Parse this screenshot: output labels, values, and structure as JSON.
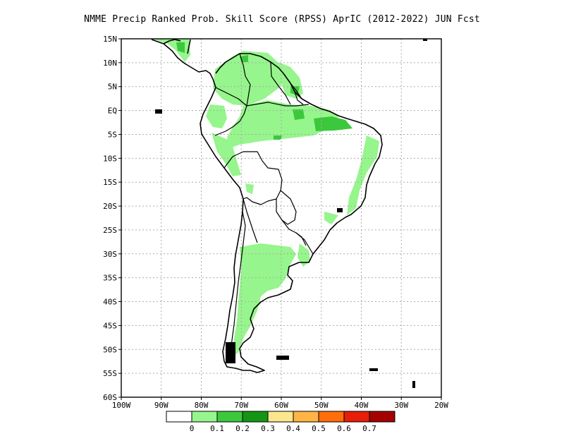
{
  "title": "NMME Precip Ranked Prob. Skill Score (RPSS) AprIC (2012-2022) JUN Fcst",
  "map": {
    "lon_range": [
      -100,
      -20
    ],
    "lat_range": [
      -60,
      15
    ],
    "lat_ticks": [
      "15N",
      "10N",
      "5N",
      "EQ",
      "5S",
      "10S",
      "15S",
      "20S",
      "25S",
      "30S",
      "35S",
      "40S",
      "45S",
      "50S",
      "55S",
      "60S"
    ],
    "lon_ticks": [
      "100W",
      "90W",
      "80W",
      "70W",
      "60W",
      "50W",
      "40W",
      "30W",
      "20W"
    ],
    "grid": "dotted"
  },
  "colorbar": {
    "colors": [
      "#ffffff",
      "#96f58c",
      "#3cc83c",
      "#149614",
      "#fae68c",
      "#ffb446",
      "#ff6e0a",
      "#e61e0a",
      "#a50000"
    ],
    "labels": [
      "0",
      "0.1",
      "0.2",
      "0.3",
      "0.4",
      "0.5",
      "0.6",
      "0.7"
    ]
  }
}
